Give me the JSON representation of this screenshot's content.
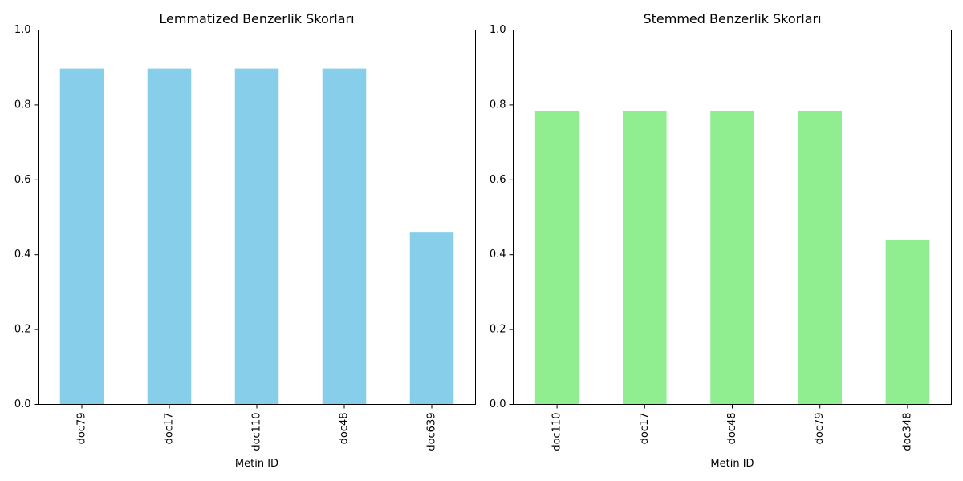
{
  "chart_data": [
    {
      "type": "bar",
      "title": "Lemmatized Benzerlik Skorları",
      "xlabel": "Metin ID",
      "ylabel": "",
      "categories": [
        "doc79",
        "doc17",
        "doc110",
        "doc48",
        "doc639"
      ],
      "values": [
        0.897,
        0.897,
        0.897,
        0.897,
        0.459
      ],
      "ylim": [
        0,
        1
      ],
      "yticks": [
        "0.0",
        "0.2",
        "0.4",
        "0.6",
        "0.8",
        "1.0"
      ],
      "color": "#87ceeb",
      "grid": false,
      "legend": "none"
    },
    {
      "type": "bar",
      "title": "Stemmed Benzerlik Skorları",
      "xlabel": "Metin ID",
      "ylabel": "",
      "categories": [
        "doc110",
        "doc17",
        "doc48",
        "doc79",
        "doc348"
      ],
      "values": [
        0.783,
        0.783,
        0.783,
        0.783,
        0.44
      ],
      "ylim": [
        0,
        1
      ],
      "yticks": [
        "0.0",
        "0.2",
        "0.4",
        "0.6",
        "0.8",
        "1.0"
      ],
      "color": "#90ee90",
      "grid": false,
      "legend": "none"
    }
  ]
}
